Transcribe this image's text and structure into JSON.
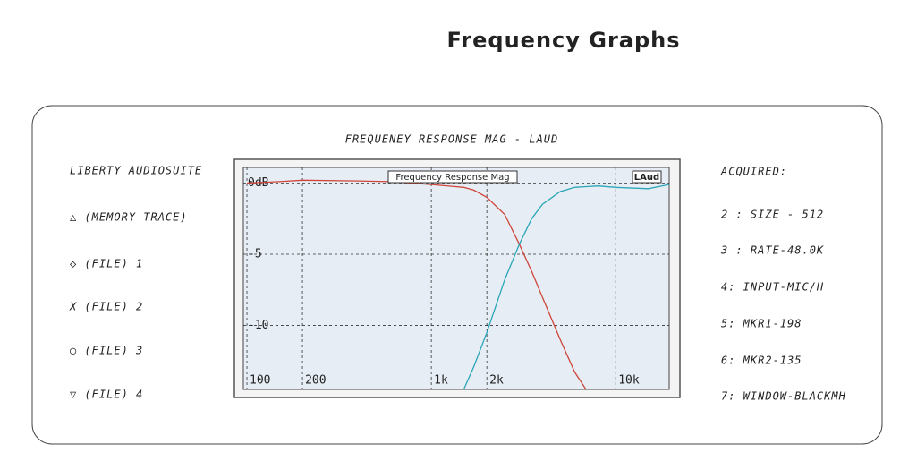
{
  "page_title": "Frequency Graphs",
  "panel_title": "FREQUENEY RESPONSE MAG - LAUD",
  "left_panel": [
    "LIBERTY AUDIOSUITE",
    "△ (MEMORY TRACE)",
    "◇ (FILE) 1",
    "X (FILE) 2",
    "○ (FILE) 3",
    "▽ (FILE) 4"
  ],
  "right_panel": [
    "ACQUIRED:",
    "2 : SIZE - 512",
    "3 : RATE-48.0K",
    "4: INPUT-MIC/H",
    "5: MKR1-198",
    "6: MKR2-135",
    "7: WINDOW-BLACKMH"
  ],
  "chart_data": {
    "type": "line",
    "title": "Frequency Response Mag",
    "label": "LAud",
    "x": [
      100,
      150,
      200,
      400,
      600,
      1000,
      1500,
      1700,
      2000,
      2500,
      3000,
      3500,
      4000,
      5000,
      6000,
      6900,
      8000,
      10000,
      15000,
      19500
    ],
    "series": [
      {
        "color": "#d0453a",
        "values": [
          0,
          0.1,
          0.2,
          0.15,
          0.1,
          -0.1,
          -0.3,
          -0.5,
          -1.0,
          -2.2,
          -4.3,
          -6.2,
          -8.0,
          -11,
          -13.3,
          -14.5,
          null,
          null,
          null,
          null
        ]
      },
      {
        "color": "#2aa6b8",
        "values": [
          null,
          null,
          null,
          null,
          null,
          null,
          -14.5,
          -12.9,
          -10.5,
          -6.8,
          -4.3,
          -2.5,
          -1.5,
          -0.6,
          -0.3,
          -0.25,
          -0.2,
          -0.3,
          -0.4,
          -0.1
        ]
      }
    ],
    "xscale": "log",
    "xlim": [
      95.6,
      19500
    ],
    "ylim": [
      -14.5,
      1.1
    ],
    "xticks": [
      100,
      200,
      {
        "value": 1000,
        "label": "1k"
      },
      {
        "value": 2000,
        "label": "2k"
      },
      {
        "value": 10000,
        "label": "10k"
      }
    ],
    "yticks": [
      -10,
      -5,
      {
        "value": 0,
        "label": "0dB"
      }
    ],
    "grid": true
  }
}
